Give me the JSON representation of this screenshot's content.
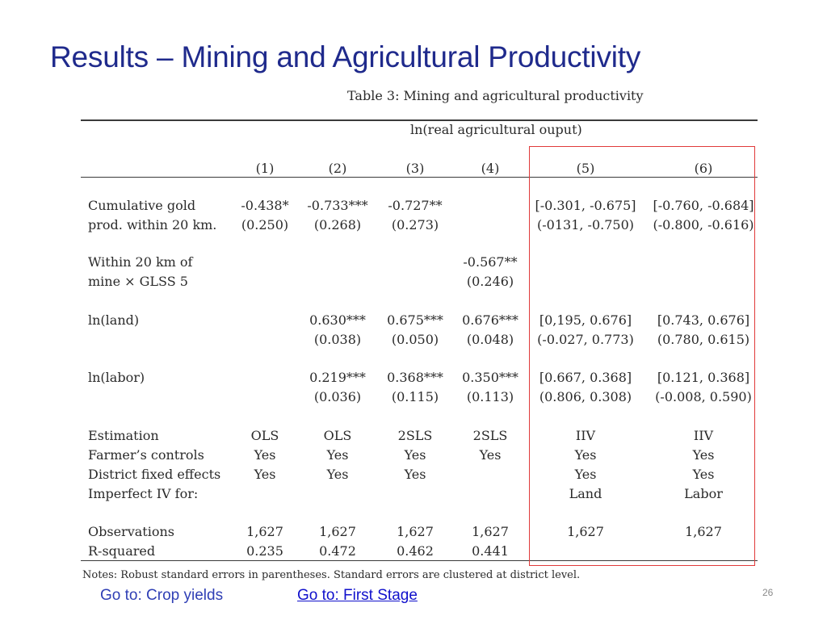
{
  "slide": {
    "title": "Results – Mining and Agricultural Productivity",
    "page_number": "26"
  },
  "table": {
    "caption": "Table 3: Mining and agricultural productivity",
    "dependent_variable": "ln(real agricultural ouput)",
    "column_headers": [
      "(1)",
      "(2)",
      "(3)",
      "(4)",
      "(5)",
      "(6)"
    ],
    "rows": [
      {
        "label": [
          "Cumulative gold",
          "prod. within 20 km."
        ],
        "cells": [
          [
            "-0.438*",
            "(0.250)"
          ],
          [
            "-0.733***",
            "(0.268)"
          ],
          [
            "-0.727**",
            "(0.273)"
          ],
          [
            "",
            ""
          ],
          [
            "[-0.301, -0.675]",
            "(-0131, -0.750)"
          ],
          [
            "[-0.760, -0.684]",
            "(-0.800, -0.616)"
          ]
        ]
      },
      {
        "label": [
          "Within 20 km of",
          "mine × GLSS 5"
        ],
        "cells": [
          [
            "",
            ""
          ],
          [
            "",
            ""
          ],
          [
            "",
            ""
          ],
          [
            "-0.567**",
            "(0.246)"
          ],
          [
            "",
            ""
          ],
          [
            "",
            ""
          ]
        ]
      },
      {
        "label": [
          "ln(land)",
          ""
        ],
        "cells": [
          [
            "",
            ""
          ],
          [
            "0.630***",
            "(0.038)"
          ],
          [
            "0.675***",
            "(0.050)"
          ],
          [
            "0.676***",
            "(0.048)"
          ],
          [
            "[0,195, 0.676]",
            "(-0.027, 0.773)"
          ],
          [
            "[0.743, 0.676]",
            "(0.780, 0.615)"
          ]
        ]
      },
      {
        "label": [
          "ln(labor)",
          ""
        ],
        "cells": [
          [
            "",
            ""
          ],
          [
            "0.219***",
            "(0.036)"
          ],
          [
            "0.368***",
            "(0.115)"
          ],
          [
            "0.350***",
            "(0.113)"
          ],
          [
            "[0.667, 0.368]",
            "(0.806, 0.308)"
          ],
          [
            "[0.121, 0.368]",
            "(-0.008, 0.590)"
          ]
        ]
      }
    ],
    "spec_rows": [
      {
        "label": "Estimation",
        "cells": [
          "OLS",
          "OLS",
          "2SLS",
          "2SLS",
          "IIV",
          "IIV"
        ]
      },
      {
        "label": "Farmer’s controls",
        "cells": [
          "Yes",
          "Yes",
          "Yes",
          "Yes",
          "Yes",
          "Yes"
        ]
      },
      {
        "label": "District fixed effects",
        "cells": [
          "Yes",
          "Yes",
          "Yes",
          "",
          "Yes",
          "Yes"
        ]
      },
      {
        "label": "Imperfect IV for:",
        "cells": [
          "",
          "",
          "",
          "",
          "Land",
          "Labor"
        ]
      }
    ],
    "stat_rows": [
      {
        "label": "Observations",
        "cells": [
          "1,627",
          "1,627",
          "1,627",
          "1,627",
          "1,627",
          "1,627"
        ]
      },
      {
        "label": "R-squared",
        "cells": [
          "0.235",
          "0.472",
          "0.462",
          "0.441",
          "",
          ""
        ]
      }
    ],
    "notes": "Notes: Robust standard errors in parentheses. Standard errors are clustered at district level.",
    "highlight_color": "#e03a3a"
  },
  "links": {
    "crop_yields": "Go to: Crop yields",
    "first_stage": "Go to: First Stage"
  }
}
